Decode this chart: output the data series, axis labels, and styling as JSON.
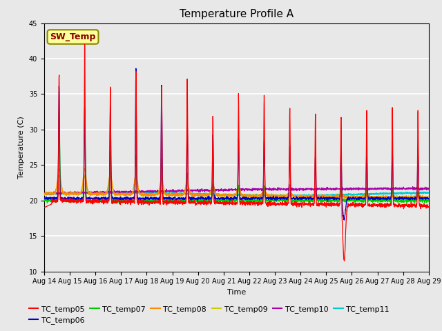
{
  "title": "Temperature Profile A",
  "xlabel": "Time",
  "ylabel": "Temperature (C)",
  "ylim": [
    10,
    45
  ],
  "yticks": [
    10,
    15,
    20,
    25,
    30,
    35,
    40,
    45
  ],
  "plot_bg_color": "#e8e8e8",
  "grid_color": "white",
  "fig_bg_color": "#e8e8e8",
  "series_colors": {
    "TC_temp05": "#ff0000",
    "TC_temp06": "#0000cc",
    "TC_temp07": "#00cc00",
    "TC_temp08": "#ff8800",
    "TC_temp09": "#cccc00",
    "TC_temp10": "#aa00aa",
    "TC_temp11": "#00cccc"
  },
  "sw_temp_box_color": "#ffff99",
  "sw_temp_text_color": "#880000",
  "sw_temp_border_color": "#888800",
  "xtick_labels": [
    "Aug 14",
    "Aug 15",
    "Aug 16",
    "Aug 17",
    "Aug 18",
    "Aug 19",
    "Aug 20",
    "Aug 21",
    "Aug 22",
    "Aug 23",
    "Aug 24",
    "Aug 25",
    "Aug 26",
    "Aug 27",
    "Aug 28",
    "Aug 29"
  ],
  "title_fontsize": 11,
  "axis_label_fontsize": 8,
  "tick_fontsize": 7,
  "legend_fontsize": 8
}
